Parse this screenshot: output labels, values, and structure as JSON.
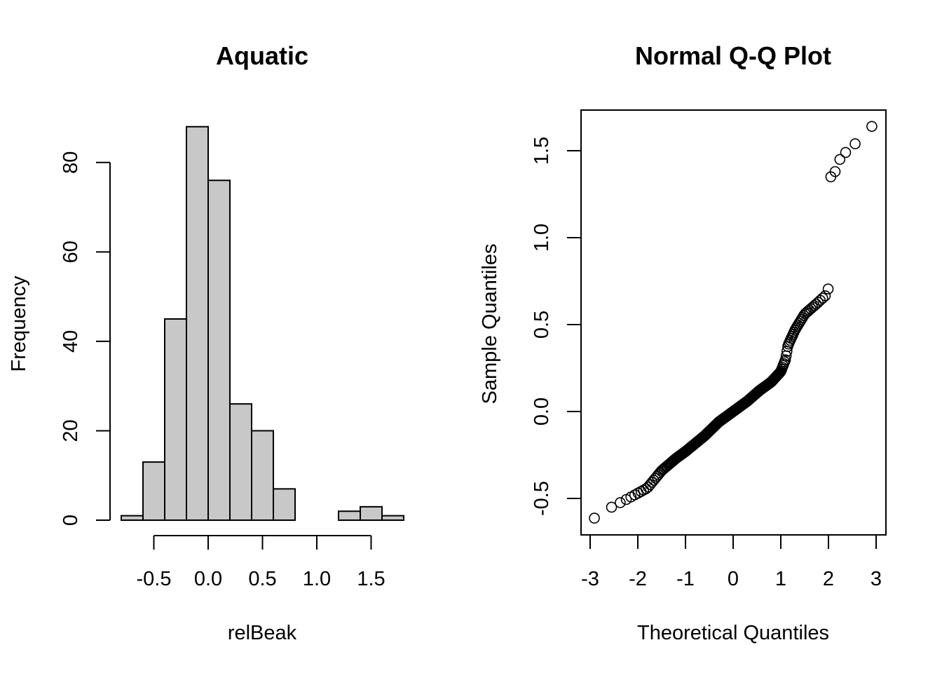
{
  "chart_data": [
    {
      "type": "bar",
      "subtype": "histogram",
      "title": "Aquatic",
      "xlabel": "relBeak",
      "ylabel": "Frequency",
      "bin_edges": [
        -0.8,
        -0.6,
        -0.4,
        -0.2,
        0.0,
        0.2,
        0.4,
        0.6,
        0.8,
        1.0,
        1.2,
        1.4,
        1.6,
        1.8
      ],
      "values": [
        1,
        13,
        45,
        88,
        76,
        26,
        20,
        7,
        0,
        0,
        2,
        3,
        1
      ],
      "x_ticks": [
        -0.5,
        0.0,
        0.5,
        1.0,
        1.5
      ],
      "x_tick_labels": [
        "-0.5",
        "0.0",
        "0.5",
        "1.0",
        "1.5"
      ],
      "y_ticks": [
        0,
        20,
        40,
        60,
        80
      ],
      "y_tick_labels": [
        "0",
        "20",
        "40",
        "60",
        "80"
      ],
      "bar_color": "#c8c8c8",
      "grid": false
    },
    {
      "type": "scatter",
      "subtype": "qq-plot",
      "title": "Normal Q-Q Plot",
      "xlabel": "Theoretical Quantiles",
      "ylabel": "Sample Quantiles",
      "x_ticks": [
        -3,
        -2,
        -1,
        0,
        1,
        2,
        3
      ],
      "x_tick_labels": [
        "-3",
        "-2",
        "-1",
        "0",
        "1",
        "2",
        "3"
      ],
      "y_ticks": [
        -0.5,
        0.0,
        0.5,
        1.0,
        1.5
      ],
      "y_tick_labels": [
        "-0.5",
        "0.0",
        "0.5",
        "1.0",
        "1.5"
      ],
      "xlim": [
        -3.1,
        3.2
      ],
      "ylim": [
        -0.7,
        1.73
      ],
      "grid": false,
      "point_style": "open-circle",
      "outlier_points": [
        {
          "x": 2.05,
          "y": 1.35
        },
        {
          "x": 2.14,
          "y": 1.38
        },
        {
          "x": 2.24,
          "y": 1.45
        },
        {
          "x": 2.36,
          "y": 1.49
        },
        {
          "x": 2.56,
          "y": 1.54
        },
        {
          "x": 2.91,
          "y": 1.64
        }
      ],
      "curve_knots": [
        [
          -2.95,
          -0.62
        ],
        [
          -2.55,
          -0.55
        ],
        [
          -2.2,
          -0.5
        ],
        [
          -1.8,
          -0.44
        ],
        [
          -1.5,
          -0.34
        ],
        [
          -1.2,
          -0.27
        ],
        [
          -1.0,
          -0.23
        ],
        [
          -0.6,
          -0.14
        ],
        [
          -0.3,
          -0.06
        ],
        [
          0.0,
          0.0
        ],
        [
          0.3,
          0.06
        ],
        [
          0.55,
          0.12
        ],
        [
          0.8,
          0.17
        ],
        [
          1.0,
          0.23
        ],
        [
          1.1,
          0.3
        ],
        [
          1.15,
          0.38
        ],
        [
          1.3,
          0.47
        ],
        [
          1.5,
          0.56
        ],
        [
          1.75,
          0.62
        ],
        [
          1.95,
          0.67
        ],
        [
          2.0,
          0.71
        ]
      ],
      "n_points": 282
    }
  ]
}
